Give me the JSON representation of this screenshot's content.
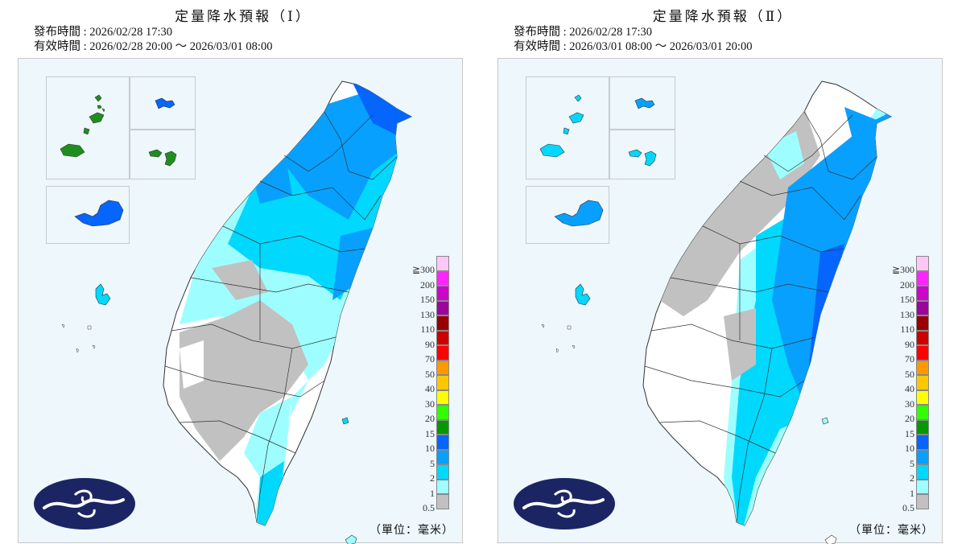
{
  "panels": [
    {
      "title": "定量降水預報（Ⅰ）",
      "issued": "發布時間 : 2026/02/28 17:30",
      "valid": "有效時間 : 2026/02/28 20:00 ～ 2026/03/01 08:00",
      "unit": "（單位：毫米）"
    },
    {
      "title": "定量降水預報（Ⅱ）",
      "issued": "發布時間 : 2026/02/28 17:30",
      "valid": "有效時間 : 2026/03/01 08:00 ～ 2026/03/01 20:00",
      "unit": "（單位：毫米）"
    }
  ],
  "legend": {
    "labels": [
      "≧300",
      "200",
      "150",
      "130",
      "110",
      "90",
      "70",
      "50",
      "40",
      "30",
      "20",
      "15",
      "10",
      "5",
      "2",
      "1",
      "0.5"
    ],
    "colors": [
      "#fdc8f8",
      "#fc25fd",
      "#cb06cb",
      "#9b059c",
      "#980000",
      "#cd0000",
      "#ff0000",
      "#fe9900",
      "#fdc700",
      "#fefe00",
      "#31ff00",
      "#049801",
      "#0565fc",
      "#08a0fe",
      "#01d8fe",
      "#9efeff",
      "#c1c1c1"
    ]
  },
  "colors": {
    "no_rain": "#ffffff",
    "rain_0_5": "#c1c1c1",
    "rain_1": "#9efeff",
    "rain_2": "#01d8fe",
    "rain_5": "#08a0fe",
    "rain_10": "#0565fc",
    "rain_15": "#049801",
    "sea": "#edf7fc",
    "logo_navy": "#1c2563"
  }
}
